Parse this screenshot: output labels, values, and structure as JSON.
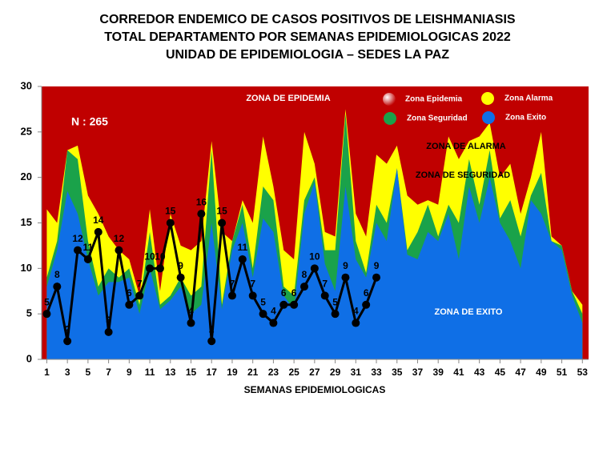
{
  "chart_data": {
    "type": "area",
    "title": [
      "CORREDOR ENDEMICO DE CASOS POSITIVOS DE LEISHMANIASIS",
      "TOTAL DEPARTAMENTO  POR SEMANAS EPIDEMIOLOGICAS  2022",
      "UNIDAD DE EPIDEMIOLOGIA – SEDES LA PAZ"
    ],
    "x_label": "SEMANAS EPIDEMIOLOGICAS",
    "x": [
      1,
      2,
      3,
      4,
      5,
      6,
      7,
      8,
      9,
      10,
      11,
      12,
      13,
      14,
      15,
      16,
      17,
      18,
      19,
      20,
      21,
      22,
      23,
      24,
      25,
      26,
      27,
      28,
      29,
      30,
      31,
      32,
      33,
      34,
      35,
      36,
      37,
      38,
      39,
      40,
      41,
      42,
      43,
      44,
      45,
      46,
      47,
      48,
      49,
      50,
      51,
      52,
      53
    ],
    "xlim": [
      0.5,
      53.6
    ],
    "xticks": [
      1,
      3,
      5,
      7,
      9,
      11,
      13,
      15,
      17,
      19,
      21,
      23,
      25,
      27,
      29,
      31,
      33,
      35,
      37,
      39,
      41,
      43,
      45,
      47,
      49,
      51,
      53
    ],
    "ylim": [
      0,
      30
    ],
    "yticks": [
      0,
      5,
      10,
      15,
      20,
      25,
      30
    ],
    "epidemic_zone": {
      "name": "Zona Epidemia",
      "color": "#c00000"
    },
    "series": [
      {
        "name": "Zona Alarma",
        "color": "#ffff00",
        "values": [
          16.5,
          15,
          23,
          23.5,
          18,
          16,
          13.5,
          12,
          11,
          7,
          16.5,
          7.5,
          16,
          12.5,
          12,
          13,
          24,
          14,
          13,
          17.5,
          15,
          24.5,
          19,
          12,
          11,
          25,
          21.5,
          14,
          13.5,
          27.5,
          16,
          13.5,
          22.5,
          21.5,
          23.5,
          18,
          17,
          17.5,
          17,
          24.5,
          22,
          24,
          24.5,
          26,
          20,
          21.5,
          16,
          20,
          25,
          13.5,
          12.5,
          7.5,
          6
        ]
      },
      {
        "name": "Zona Seguridad",
        "color": "#1aa24a",
        "values": [
          9,
          13,
          23,
          22,
          13,
          8,
          10,
          9,
          10,
          6,
          14,
          6,
          7,
          9,
          7,
          8,
          23,
          6,
          13,
          17,
          10,
          19,
          17.5,
          8,
          7,
          17.5,
          20,
          12,
          12,
          27,
          13,
          9.5,
          17,
          15,
          21,
          12,
          14,
          17,
          13.5,
          17,
          15,
          22,
          17,
          23,
          15.5,
          17.5,
          13.5,
          18,
          20.5,
          13,
          12.5,
          7.5,
          5
        ]
      },
      {
        "name": "Zona Exito",
        "color": "#0f6fe6",
        "values": [
          8,
          12,
          18.5,
          16,
          11,
          7,
          8.5,
          8.5,
          9,
          5,
          10,
          5.5,
          6.5,
          8,
          5,
          6,
          15,
          5.5,
          12,
          15,
          9,
          15.5,
          14,
          7,
          5.5,
          16,
          19.5,
          10.5,
          7.5,
          19,
          11,
          9,
          15,
          13,
          21,
          11.5,
          11,
          14,
          13,
          16,
          11,
          19,
          15,
          20,
          15,
          13,
          10,
          17.5,
          16,
          13,
          12,
          7,
          4
        ]
      }
    ],
    "cases": {
      "color": "#000000",
      "x": [
        1,
        2,
        3,
        4,
        5,
        6,
        7,
        8,
        9,
        10,
        11,
        12,
        13,
        14,
        15,
        16,
        17,
        18,
        19,
        20,
        21,
        22,
        23,
        24,
        25,
        26,
        27,
        28,
        29,
        30,
        31,
        32,
        33
      ],
      "values": [
        5,
        8,
        2,
        12,
        11,
        14,
        3,
        12,
        6,
        7,
        10,
        10,
        15,
        9,
        4,
        16,
        2,
        15,
        7,
        11,
        7,
        5,
        4,
        6,
        6,
        8,
        10,
        7,
        5,
        9,
        4,
        6,
        9
      ]
    },
    "annotations": [
      "N : 265",
      "ZONA DE EPIDEMIA",
      "ZONA DE ALARMA",
      "ZONA DE  SEGURIDAD",
      "ZONA DE  EXITO"
    ]
  }
}
